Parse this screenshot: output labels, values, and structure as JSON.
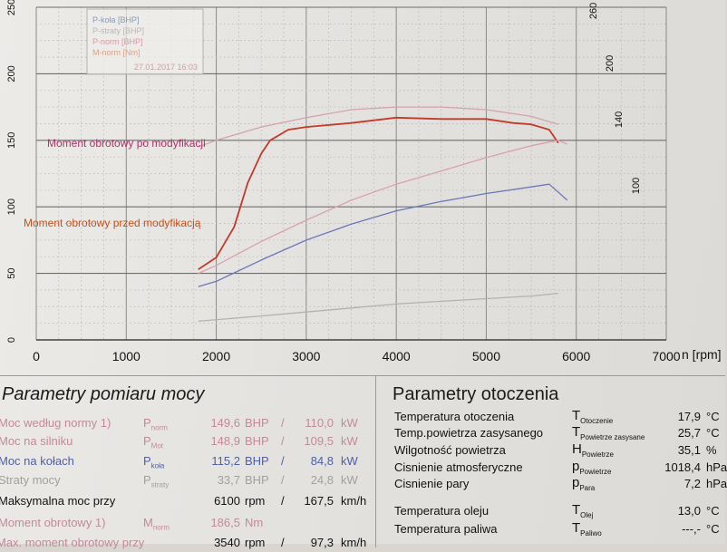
{
  "chart_data": {
    "type": "line",
    "x_axis": {
      "label": "n [rpm]",
      "ticks": [
        0,
        1000,
        2000,
        3000,
        4000,
        5000,
        6000,
        7000
      ],
      "range": [
        0,
        7000
      ]
    },
    "y_axis_left": {
      "ticks": [
        0,
        50,
        100,
        150,
        200,
        250
      ],
      "range": [
        0,
        250
      ]
    },
    "y_axis_right": {
      "ticks": [
        100,
        140,
        200,
        260
      ],
      "note": "faded secondary torque scale"
    },
    "grid": true,
    "legend": {
      "placement": "top-left",
      "entries": [
        {
          "label": "P-koła [BHP]",
          "color": "#8a9ab8"
        },
        {
          "label": "P-straty [BHP]",
          "color": "#b8b8b8"
        },
        {
          "label": "P-norm [BHP]",
          "color": "#d89aa8"
        },
        {
          "label": "M-norm [Nm]",
          "color": "#e0a080"
        }
      ],
      "date": "27.01.2017 16:03"
    },
    "annotations": [
      {
        "text": "Moment obrotowy po modyfikacji",
        "color": "#b0306a"
      },
      {
        "text": "Moment obrotowy przed modyfikacją",
        "color": "#c8501a"
      }
    ],
    "series": [
      {
        "name": "Moment obrotowy po modyfikacji",
        "color": "#c43a2a",
        "x": [
          1800,
          2000,
          2200,
          2350,
          2500,
          2600,
          2800,
          3000,
          3500,
          4000,
          4500,
          5000,
          5300,
          5500,
          5700,
          5800
        ],
        "y": [
          53,
          62,
          85,
          118,
          140,
          150,
          158,
          160,
          163,
          167,
          166,
          166,
          163,
          162,
          158,
          148
        ]
      },
      {
        "name": "Moment obrotowy przed modyfikacją",
        "color": "#d4a2ae",
        "x": [
          1800,
          2000,
          2500,
          3000,
          3500,
          4000,
          4500,
          5000,
          5500,
          5800
        ],
        "y": [
          145,
          150,
          160,
          167,
          173,
          175,
          175,
          173,
          168,
          162
        ]
      },
      {
        "name": "P-norm",
        "color": "#d9a0b0",
        "x": [
          1800,
          2000,
          2500,
          3000,
          3500,
          4000,
          4500,
          5000,
          5500,
          5800,
          5900
        ],
        "y": [
          50,
          56,
          74,
          90,
          105,
          117,
          127,
          137,
          146,
          150,
          147
        ]
      },
      {
        "name": "P-koła",
        "color": "#6a78ba",
        "x": [
          1800,
          2000,
          2500,
          3000,
          3500,
          4000,
          4500,
          5000,
          5500,
          5700,
          5900
        ],
        "y": [
          40,
          44,
          60,
          75,
          87,
          97,
          104,
          110,
          115,
          117,
          105
        ]
      },
      {
        "name": "P-straty",
        "color": "#b4b2ae",
        "x": [
          1800,
          2500,
          3000,
          3500,
          4000,
          4500,
          5000,
          5500,
          5800
        ],
        "y": [
          14,
          18,
          21,
          24,
          27,
          29,
          31,
          33,
          35
        ]
      }
    ]
  },
  "left_panel": {
    "title": "Parametry pomiaru mocy",
    "rows": [
      {
        "label": "Moc według normy 1)",
        "sym": "P",
        "sub": "norm",
        "v1": "149,6",
        "u1": "BHP",
        "sep": "/",
        "v2": "110,0",
        "u2": "kW"
      },
      {
        "label": "Moc na silniku",
        "sym": "P",
        "sub": "Mot",
        "v1": "148,9",
        "u1": "BHP",
        "sep": "/",
        "v2": "109,5",
        "u2": "kW"
      },
      {
        "label": "Moc na kołach",
        "sym": "P",
        "sub": "koła",
        "v1": "115,2",
        "u1": "BHP",
        "sep": "/",
        "v2": "84,8",
        "u2": "kW"
      },
      {
        "label": "Straty mocy",
        "sym": "P",
        "sub": "straty",
        "v1": "33,7",
        "u1": "BHP",
        "sep": "/",
        "v2": "24,8",
        "u2": "kW"
      },
      {
        "label": "Maksymalna moc przy",
        "v1": "6100",
        "u1": "rpm",
        "sep": "/",
        "v2": "167,5",
        "u2": "km/h"
      },
      {
        "label": "Moment obrotowy 1)",
        "sym": "M",
        "sub": "norm",
        "v1": "186,5",
        "u1": "Nm"
      },
      {
        "label": "Max. moment obrotowy przy",
        "v1": "3540",
        "u1": "rpm",
        "sep": "/",
        "v2": "97,3",
        "u2": "km/h"
      }
    ]
  },
  "right_panel": {
    "title": "Parametry otoczenia",
    "rows": [
      {
        "label": "Temperatura otoczenia",
        "sym": "T",
        "sub": "Otoczenie",
        "value": "17,9",
        "unit": "°C"
      },
      {
        "label": "Temp.powietrza zasysanego",
        "sym": "T",
        "sub": "Powietrze zasysane",
        "value": "25,7",
        "unit": "°C"
      },
      {
        "label": "Wilgotność powietrza",
        "sym": "H",
        "sub": "Powietrze",
        "value": "35,1",
        "unit": "%"
      },
      {
        "label": "Cisnienie atmosferyczne",
        "sym": "p",
        "sub": "Powietrze",
        "value": "1018,4",
        "unit": "hPa"
      },
      {
        "label": "Cisnienie pary",
        "sym": "p",
        "sub": "Para",
        "value": "7,2",
        "unit": "hPa"
      },
      {
        "label": "Temperatura oleju",
        "sym": "T",
        "sub": "Olej",
        "value": "13,0",
        "unit": "°C"
      },
      {
        "label": "Temperatura paliwa",
        "sym": "T",
        "sub": "Paliwo",
        "value": "---,-",
        "unit": "°C"
      }
    ]
  }
}
